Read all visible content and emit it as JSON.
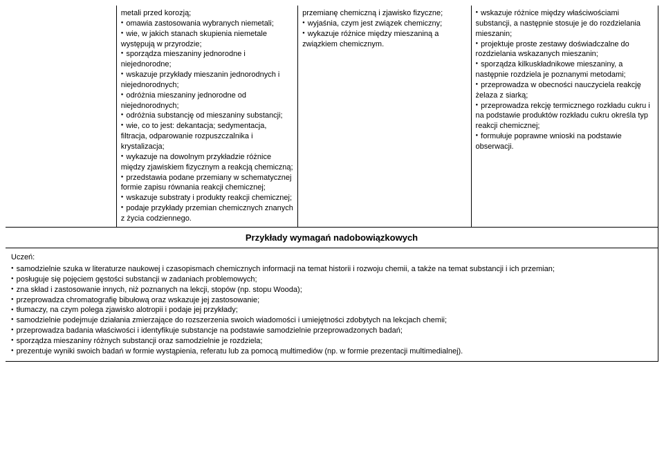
{
  "columns": {
    "empty": "",
    "b": [
      "metali przed korozją;",
      "omawia zastosowania wybranych niemetali;",
      "wie, w jakich stanach skupienia niemetale występują w przyrodzie;",
      "sporządza mieszaniny jednorodne i niejednorodne;",
      "wskazuje przykłady mieszanin jednorodnych i niejednorodnych;",
      "odróżnia mieszaniny jednorodne od niejednorodnych;",
      "odróżnia substancję od mieszaniny substancji;",
      "wie, co to jest: dekantacja; sedymentacja, filtracja, odparowanie rozpuszczalnika i krystalizacja;",
      "wykazuje na dowolnym przykładzie różnice między zjawiskiem fizycznym a reakcją chemiczną;",
      "przedstawia podane przemiany w schematycznej formie zapisu równania reakcji chemicznej;",
      "wskazuje substraty i produkty reakcji chemicznej;",
      "podaje przykłady przemian chemicznych znanych z życia codziennego."
    ],
    "c": [
      "przemianę chemiczną i zjawisko fizyczne;",
      "wyjaśnia, czym jest związek chemiczny;",
      "wykazuje różnice między mieszaniną a związkiem chemicznym."
    ],
    "d": [
      "wskazuje różnice między właściwościami substancji, a następnie stosuje je do rozdzielania mieszanin;",
      "projektuje proste zestawy doświadczalne do rozdzielania wskazanych mieszanin;",
      "sporządza kilkuskładnikowe mieszaniny, a następnie rozdziela je poznanymi metodami;",
      "przeprowadza w obecności nauczyciela reakcję żelaza z siarką;",
      "przeprowadza rekcję termicznego rozkładu cukru i na podstawie produktów rozkładu cukru określa typ reakcji chemicznej;",
      "formułuje poprawne wnioski na podstawie obserwacji."
    ]
  },
  "heading": "Przykłady wymagań nadobowiązkowych",
  "bottom": {
    "lead": "Uczeń:",
    "items": [
      "samodzielnie szuka w literaturze naukowej i czasopismach chemicznych informacji na temat historii i rozwoju chemii, a także na temat substancji i ich przemian;",
      "posługuje się pojęciem gęstości substancji w zadaniach problemowych;",
      "zna skład i zastosowanie innych, niż poznanych na lekcji, stopów (np. stopu Wooda);",
      "przeprowadza chromatografię bibułową oraz wskazuje jej zastosowanie;",
      "tłumaczy, na czym polega zjawisko alotropii i podaje jej przykłady;",
      "samodzielnie podejmuje działania zmierzające do rozszerzenia swoich wiadomości i umiejętności zdobytych na lekcjach chemii;",
      "przeprowadza badania właściwości i identyfikuje substancje na podstawie samodzielnie przeprowadzonych badań;",
      "sporządza mieszaniny różnych substancji oraz samodzielnie je rozdziela;",
      "prezentuje wyniki swoich badań w formie wystąpienia, referatu lub za pomocą multimediów (np. w formie prezentacji multimedialnej)."
    ]
  },
  "colBullets": {
    "b": [
      false,
      true,
      true,
      true,
      true,
      true,
      true,
      true,
      true,
      true,
      true,
      true
    ],
    "c": [
      false,
      true,
      true
    ],
    "d": [
      true,
      true,
      true,
      true,
      true,
      true
    ]
  }
}
